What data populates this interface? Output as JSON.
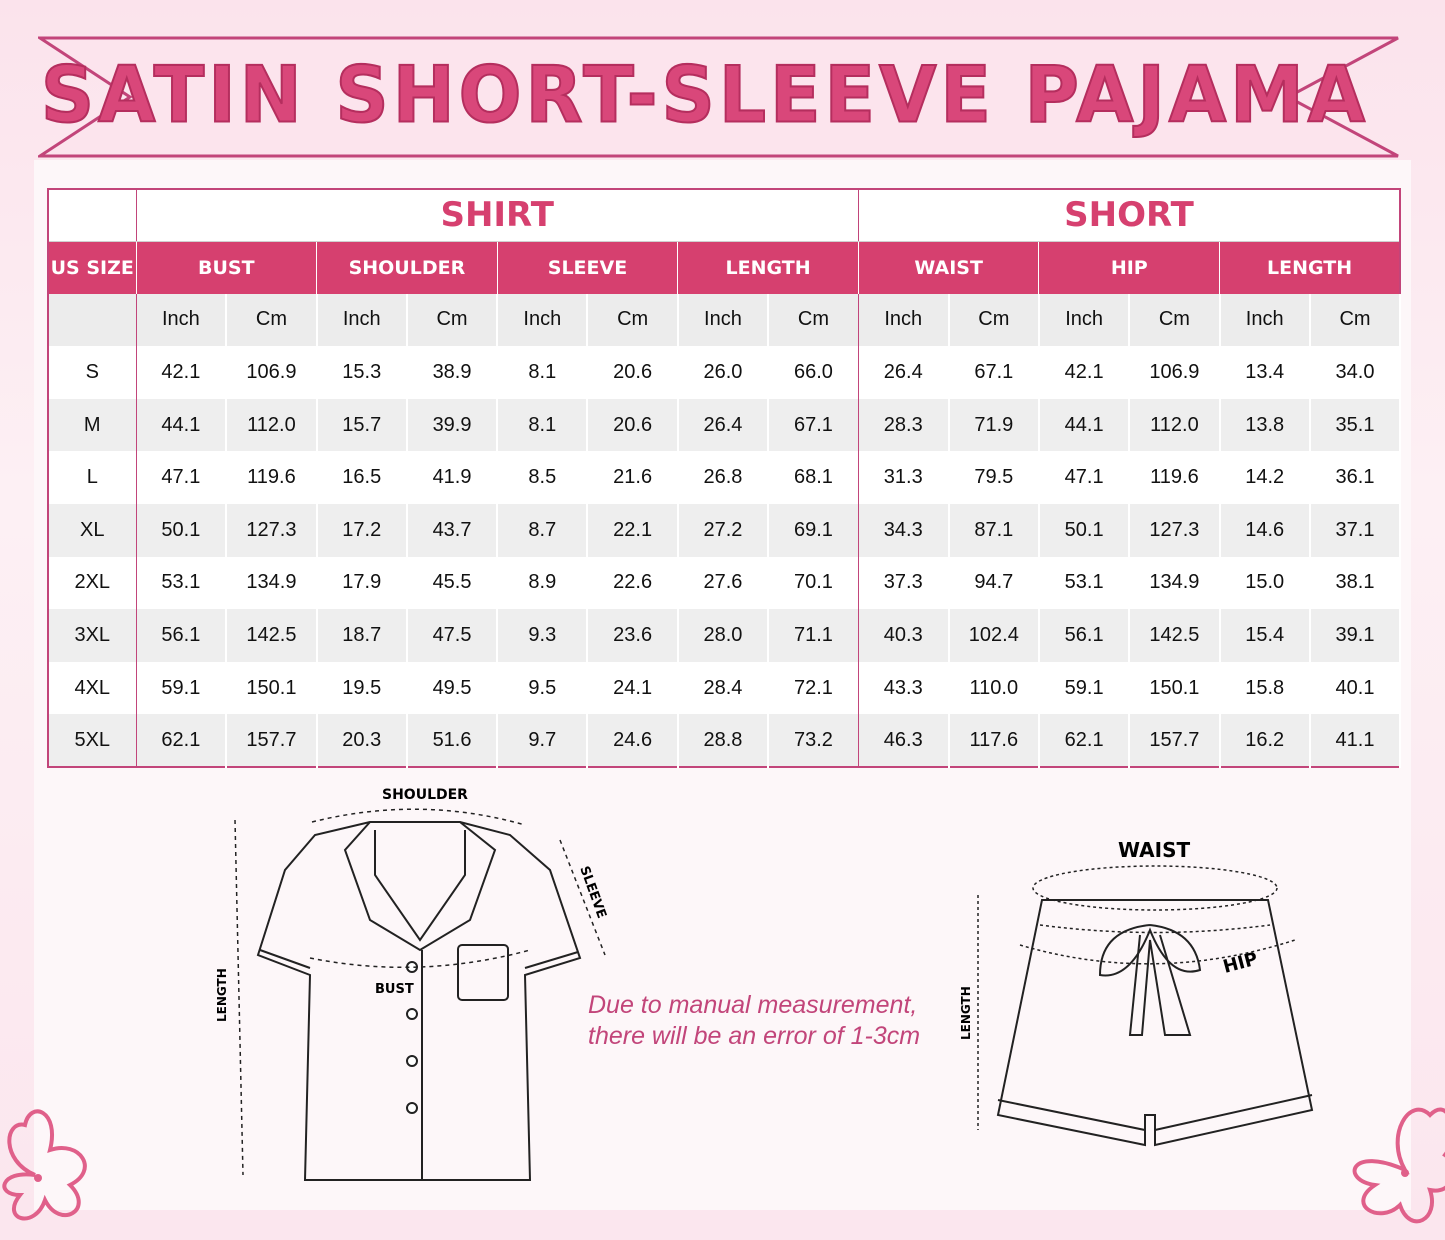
{
  "title": "SATIN SHORT-SLEEVE PAJAMA",
  "colors": {
    "accent": "#d6406f",
    "border": "#c2457a"
  },
  "table": {
    "size_header": "US SIZE",
    "groups": [
      {
        "label": "SHIRT",
        "span": 4
      },
      {
        "label": "SHORT",
        "span": 3
      }
    ],
    "measures": [
      "BUST",
      "SHOULDER",
      "SLEEVE",
      "LENGTH",
      "WAIST",
      "HIP",
      "LENGTH"
    ],
    "units": [
      "Inch",
      "Cm"
    ],
    "rows": [
      {
        "size": "S",
        "values": [
          "42.1",
          "106.9",
          "15.3",
          "38.9",
          "8.1",
          "20.6",
          "26.0",
          "66.0",
          "26.4",
          "67.1",
          "42.1",
          "106.9",
          "13.4",
          "34.0"
        ]
      },
      {
        "size": "M",
        "values": [
          "44.1",
          "112.0",
          "15.7",
          "39.9",
          "8.1",
          "20.6",
          "26.4",
          "67.1",
          "28.3",
          "71.9",
          "44.1",
          "112.0",
          "13.8",
          "35.1"
        ]
      },
      {
        "size": "L",
        "values": [
          "47.1",
          "119.6",
          "16.5",
          "41.9",
          "8.5",
          "21.6",
          "26.8",
          "68.1",
          "31.3",
          "79.5",
          "47.1",
          "119.6",
          "14.2",
          "36.1"
        ]
      },
      {
        "size": "XL",
        "values": [
          "50.1",
          "127.3",
          "17.2",
          "43.7",
          "8.7",
          "22.1",
          "27.2",
          "69.1",
          "34.3",
          "87.1",
          "50.1",
          "127.3",
          "14.6",
          "37.1"
        ]
      },
      {
        "size": "2XL",
        "values": [
          "53.1",
          "134.9",
          "17.9",
          "45.5",
          "8.9",
          "22.6",
          "27.6",
          "70.1",
          "37.3",
          "94.7",
          "53.1",
          "134.9",
          "15.0",
          "38.1"
        ]
      },
      {
        "size": "3XL",
        "values": [
          "56.1",
          "142.5",
          "18.7",
          "47.5",
          "9.3",
          "23.6",
          "28.0",
          "71.1",
          "40.3",
          "102.4",
          "56.1",
          "142.5",
          "15.4",
          "39.1"
        ]
      },
      {
        "size": "4XL",
        "values": [
          "59.1",
          "150.1",
          "19.5",
          "49.5",
          "9.5",
          "24.1",
          "28.4",
          "72.1",
          "43.3",
          "110.0",
          "59.1",
          "150.1",
          "15.8",
          "40.1"
        ]
      },
      {
        "size": "5XL",
        "values": [
          "62.1",
          "157.7",
          "20.3",
          "51.6",
          "9.7",
          "24.6",
          "28.8",
          "73.2",
          "46.3",
          "117.6",
          "62.1",
          "157.7",
          "16.2",
          "41.1"
        ]
      }
    ]
  },
  "diagram": {
    "shirt_labels": {
      "shoulder": "SHOULDER",
      "sleeve": "SLEEVE",
      "bust": "BUST",
      "length": "LENGTH"
    },
    "short_labels": {
      "waist": "WAIST",
      "hip": "HIP",
      "length": "LENGTH"
    }
  },
  "note": {
    "line1": "Due to manual measurement,",
    "line2": "there will be an error of 1-3cm"
  }
}
